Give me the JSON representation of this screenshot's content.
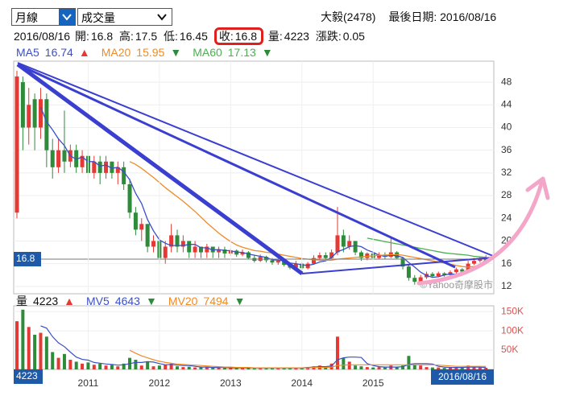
{
  "controls": {
    "period": "月線",
    "indicator": "成交量"
  },
  "header": {
    "stock": "大毅(2478)",
    "last_date": "最後日期: 2016/08/16"
  },
  "quote": {
    "date": "2016/08/16",
    "items": [
      {
        "label": "開:",
        "value": 16.8
      },
      {
        "label": "高:",
        "value": 17.5
      },
      {
        "label": "低:",
        "value": 16.45
      },
      {
        "label": "收:",
        "value": 16.8
      },
      {
        "label": "量:",
        "value": 4223
      },
      {
        "label": "漲跌:",
        "value": 0.05
      }
    ]
  },
  "chart_data": [
    {
      "type": "candlestick",
      "up_color": "#e53935",
      "down_color": "#2e8b3a",
      "watermark": "©Yahoo奇摩股市",
      "grid": true,
      "ylim": [
        10.7,
        51.7
      ],
      "yticks": [
        12,
        16,
        20,
        24,
        28,
        32,
        36,
        40,
        44,
        48
      ],
      "open": [
        25,
        48,
        40,
        45,
        40,
        45,
        36,
        33,
        36,
        34,
        36,
        33,
        35,
        32,
        34,
        32,
        34,
        32,
        33,
        30,
        25,
        22,
        23,
        19,
        20,
        17,
        19,
        21,
        19,
        20,
        18,
        19,
        18,
        19,
        18,
        18.5,
        17.8,
        18.3,
        17.6,
        18,
        17,
        16.5,
        17.2,
        16.6,
        16.2,
        16.5,
        15.8,
        15.3,
        16,
        15.2,
        16,
        17,
        17.5,
        17,
        18,
        21,
        19,
        20,
        18,
        17,
        17.8,
        17,
        17.6,
        17.2,
        18,
        17,
        15.5,
        13.5,
        12.8,
        13.6,
        14.2,
        13.8,
        14.3,
        14,
        14.5,
        15,
        14.6,
        16,
        16.5,
        16.8
      ],
      "high": [
        50,
        49,
        47,
        46,
        47,
        46,
        38,
        38,
        43,
        37,
        37,
        36,
        36,
        35,
        35,
        35,
        34,
        34,
        34,
        31,
        26,
        24,
        23,
        21,
        21,
        20,
        23,
        22,
        21,
        20,
        20,
        19,
        19.5,
        19,
        19,
        19,
        18.7,
        18.5,
        18.5,
        18.2,
        17.5,
        17.6,
        17.4,
        17,
        16.8,
        16.8,
        16.2,
        16.5,
        16.2,
        16.3,
        17.5,
        18,
        18,
        18.5,
        26,
        22,
        21,
        20,
        18.3,
        18,
        18,
        18,
        18,
        20.5,
        18.2,
        17.2,
        15.8,
        14,
        14,
        14.6,
        14.5,
        14.6,
        14.5,
        14.8,
        15.3,
        15.2,
        16.5,
        17,
        17.2,
        17.5
      ],
      "low": [
        24,
        36,
        37,
        36,
        38,
        33,
        31,
        32,
        32,
        33,
        32,
        32,
        31,
        31,
        30,
        31,
        31,
        30,
        29,
        24,
        21,
        20,
        18,
        18,
        16,
        16,
        18,
        18,
        18,
        17,
        17,
        17,
        17,
        17,
        17,
        17,
        17.4,
        17.2,
        17.3,
        16.8,
        16.2,
        16.3,
        16.2,
        15.8,
        15.8,
        15.5,
        15,
        15,
        14.8,
        15,
        15.8,
        16.5,
        16.6,
        16.8,
        17.5,
        18,
        18.5,
        17.5,
        16.5,
        16.6,
        16.7,
        16.8,
        16.8,
        17,
        16.8,
        15,
        13,
        12.3,
        12.5,
        13.3,
        13.5,
        13.6,
        13.7,
        13.8,
        14.2,
        14.3,
        14.5,
        15.8,
        16.2,
        16.45
      ],
      "close": [
        49,
        40,
        44,
        40,
        45,
        36,
        33,
        36,
        34,
        36,
        33,
        35,
        32,
        34,
        32,
        34,
        32,
        33,
        30,
        25,
        22,
        23,
        19,
        20,
        17,
        19,
        21,
        19,
        20,
        18,
        19,
        18,
        19,
        18,
        18.5,
        17.8,
        18.3,
        17.6,
        18,
        17,
        16.5,
        17.2,
        16.6,
        16.2,
        16.5,
        15.8,
        15.3,
        16,
        15.2,
        16,
        17,
        17.5,
        17,
        18,
        21,
        19,
        20,
        18,
        17,
        17.8,
        17,
        17.6,
        17.2,
        18,
        17,
        15.5,
        13.5,
        12.8,
        13.6,
        14.2,
        13.8,
        14.3,
        14,
        14.5,
        15,
        14.6,
        16,
        16.5,
        16.75,
        16.8
      ],
      "series": [
        {
          "name": "MA5",
          "color": "#3a4fc8",
          "trend": "▲",
          "trend_color": "#e53935",
          "values": [
            null,
            null,
            null,
            null,
            43.6,
            41,
            39.6,
            38,
            36.8,
            35,
            34.4,
            34.8,
            34,
            34,
            33.2,
            33.4,
            32.8,
            33,
            32.2,
            30.8,
            28.4,
            26.6,
            23.8,
            21.8,
            20.2,
            19.6,
            19.2,
            19.2,
            19.2,
            19.4,
            19.4,
            18.8,
            18.8,
            18.4,
            18.5,
            18.3,
            18.3,
            18,
            18,
            17.7,
            17.5,
            17.3,
            17.1,
            16.7,
            16.6,
            16.5,
            16.1,
            16,
            15.8,
            15.7,
            15.9,
            16.3,
            16.5,
            17.1,
            18.1,
            18.5,
            19,
            19.2,
            19,
            18.4,
            18,
            17.5,
            17.3,
            17.5,
            17.4,
            17.1,
            16.2,
            15.4,
            14.5,
            13.9,
            13.6,
            13.7,
            14,
            14.2,
            14.1,
            14.5,
            14.8,
            15.3,
            15.8,
            16.74
          ]
        },
        {
          "name": "MA20",
          "color": "#f08a24",
          "trend": "▼",
          "trend_color": "#2e8b3a",
          "values": [
            null,
            null,
            null,
            null,
            null,
            null,
            null,
            null,
            null,
            null,
            null,
            null,
            null,
            null,
            null,
            null,
            null,
            null,
            null,
            34,
            33.5,
            32.8,
            32,
            31.2,
            30.3,
            29.4,
            28.6,
            27.8,
            27,
            26.1,
            25.2,
            24.2,
            23.2,
            22.3,
            21.4,
            20.6,
            19.9,
            19.3,
            18.9,
            18.6,
            18.3,
            18.2,
            18,
            17.9,
            17.7,
            17.5,
            17.3,
            17.1,
            16.9,
            16.8,
            16.7,
            16.6,
            16.6,
            16.6,
            16.8,
            16.9,
            17,
            17.1,
            17.2,
            17.3,
            17.4,
            17.5,
            17.5,
            17.6,
            17.6,
            17.5,
            17.3,
            17.1,
            16.9,
            16.7,
            16.5,
            16.3,
            16.1,
            15.9,
            15.7,
            15.5,
            15.4,
            15.5,
            15.7,
            15.95
          ]
        },
        {
          "name": "MA60",
          "color": "#4caf50",
          "trend": "▼",
          "trend_color": "#2e8b3a",
          "values": [
            null,
            null,
            null,
            null,
            null,
            null,
            null,
            null,
            null,
            null,
            null,
            null,
            null,
            null,
            null,
            null,
            null,
            null,
            null,
            null,
            null,
            null,
            null,
            null,
            null,
            null,
            null,
            null,
            null,
            null,
            null,
            null,
            null,
            null,
            null,
            null,
            null,
            null,
            null,
            null,
            null,
            null,
            null,
            null,
            null,
            null,
            null,
            null,
            null,
            null,
            null,
            null,
            null,
            null,
            null,
            null,
            null,
            null,
            null,
            20.5,
            20.3,
            20.1,
            19.9,
            19.7,
            19.5,
            19.3,
            19.1,
            18.9,
            18.7,
            18.5,
            18.3,
            18.1,
            17.9,
            17.8,
            17.7,
            17.6,
            17.5,
            17.3,
            17.2,
            17.13
          ]
        }
      ]
    },
    {
      "type": "bar",
      "name": "量",
      "trend": "▲",
      "trend_color": "#e53935",
      "tick_color": "#e05050",
      "grid": true,
      "categories": [
        null,
        null,
        null,
        null,
        null,
        null,
        null,
        null,
        null,
        null,
        null,
        null,
        "2011",
        null,
        null,
        null,
        null,
        null,
        null,
        null,
        null,
        null,
        null,
        null,
        "2012",
        null,
        null,
        null,
        null,
        null,
        null,
        null,
        null,
        null,
        null,
        null,
        "2013",
        null,
        null,
        null,
        null,
        null,
        null,
        null,
        null,
        null,
        null,
        null,
        "2014",
        null,
        null,
        null,
        null,
        null,
        null,
        null,
        null,
        null,
        null,
        null,
        "2015",
        null,
        null,
        null,
        null,
        null,
        null,
        null,
        null,
        null,
        null,
        null,
        null,
        null,
        null,
        null,
        null,
        null,
        null,
        null
      ],
      "ylim": [
        0,
        165000
      ],
      "yticks": [
        {
          "value": 50000,
          "label": "50K"
        },
        {
          "value": 100000,
          "label": "100K"
        },
        {
          "value": 150000,
          "label": "150K"
        }
      ],
      "values": [
        125000,
        155000,
        110000,
        90000,
        95000,
        85000,
        45000,
        30000,
        40000,
        25000,
        20000,
        15000,
        18000,
        12000,
        15000,
        10000,
        12000,
        8000,
        15000,
        30000,
        25000,
        10000,
        20000,
        8000,
        10000,
        12000,
        15000,
        8000,
        6000,
        7000,
        5000,
        6000,
        5000,
        4000,
        5000,
        4000,
        4000,
        4000,
        3000,
        4000,
        5000,
        4000,
        3000,
        4000,
        3000,
        4000,
        5000,
        4000,
        5000,
        6000,
        8000,
        10000,
        8000,
        15000,
        85000,
        30000,
        20000,
        10000,
        8000,
        6000,
        5000,
        6000,
        5000,
        10000,
        6000,
        10000,
        35000,
        12000,
        10000,
        6000,
        5000,
        5000,
        4000,
        5000,
        6000,
        5000,
        10000,
        6000,
        5000,
        4223
      ],
      "series": [
        {
          "name": "MV5",
          "color": "#3a4fc8",
          "trend": "▼",
          "trend_color": "#2e8b3a",
          "values": [
            null,
            null,
            null,
            null,
            113000,
            107000,
            85000,
            69000,
            59000,
            45000,
            32000,
            26000,
            24000,
            18000,
            16000,
            14000,
            13000,
            11000,
            12000,
            15000,
            18000,
            18000,
            20000,
            19000,
            15000,
            12000,
            13000,
            11000,
            10000,
            10000,
            8000,
            6000,
            6000,
            5000,
            5000,
            5000,
            4000,
            4000,
            4000,
            4000,
            4000,
            4000,
            4000,
            4000,
            4000,
            4000,
            4000,
            4000,
            4000,
            5000,
            6000,
            7000,
            7000,
            9000,
            25000,
            30000,
            32000,
            32000,
            31000,
            15000,
            10000,
            7000,
            6000,
            6000,
            6000,
            7000,
            13000,
            15000,
            15000,
            15000,
            14000,
            8000,
            6000,
            5000,
            5000,
            5000,
            6000,
            6000,
            6000,
            4643
          ]
        },
        {
          "name": "MV20",
          "color": "#f08a24",
          "trend": "▼",
          "trend_color": "#2e8b3a",
          "values": [
            null,
            null,
            null,
            null,
            null,
            null,
            null,
            null,
            null,
            null,
            null,
            null,
            null,
            null,
            null,
            null,
            null,
            null,
            null,
            50000,
            42000,
            35000,
            30000,
            25000,
            21000,
            18000,
            16000,
            14000,
            13000,
            12000,
            11000,
            10000,
            9000,
            8000,
            7000,
            6000,
            6000,
            5000,
            5000,
            5000,
            4000,
            4000,
            4000,
            4000,
            4000,
            4000,
            4000,
            4000,
            4000,
            4000,
            5000,
            5000,
            5000,
            6000,
            10000,
            11000,
            12000,
            12000,
            12000,
            12000,
            12000,
            12000,
            12000,
            12000,
            12000,
            12000,
            12000,
            12000,
            12000,
            12000,
            12000,
            11000,
            10000,
            9000,
            8000,
            8000,
            8000,
            8000,
            8000,
            7494
          ]
        }
      ]
    }
  ]
}
